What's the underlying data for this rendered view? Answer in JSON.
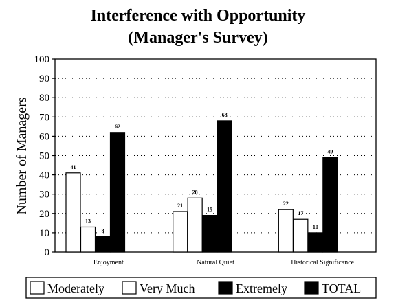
{
  "chart_data": {
    "type": "bar",
    "title": "Interference with Opportunity",
    "subtitle": "(Manager's Survey)",
    "xlabel": "",
    "ylabel": "Number of Managers",
    "ylim": [
      0,
      100
    ],
    "yticks": [
      "0",
      "10",
      "20",
      "30",
      "40",
      "50",
      "60",
      "70",
      "80",
      "90",
      "100"
    ],
    "grid": true,
    "legend_position": "bottom",
    "categories": [
      "Enjoyment",
      "Natural Quiet",
      "Historical Significance"
    ],
    "series": [
      {
        "name": "Moderately",
        "values": [
          41,
          21,
          22
        ],
        "labels": [
          "41",
          "21",
          "22"
        ],
        "color": "#ffffff"
      },
      {
        "name": "Very Much",
        "values": [
          13,
          28,
          17
        ],
        "labels": [
          "13",
          "28",
          "17"
        ],
        "color": "#ffffff"
      },
      {
        "name": "Extremely",
        "values": [
          8,
          19,
          10
        ],
        "labels": [
          "8",
          "19",
          "10"
        ],
        "color": "#000000"
      },
      {
        "name": "TOTAL",
        "values": [
          62,
          68,
          49
        ],
        "labels": [
          "62",
          "68",
          "49"
        ],
        "color": "#000000"
      }
    ]
  }
}
